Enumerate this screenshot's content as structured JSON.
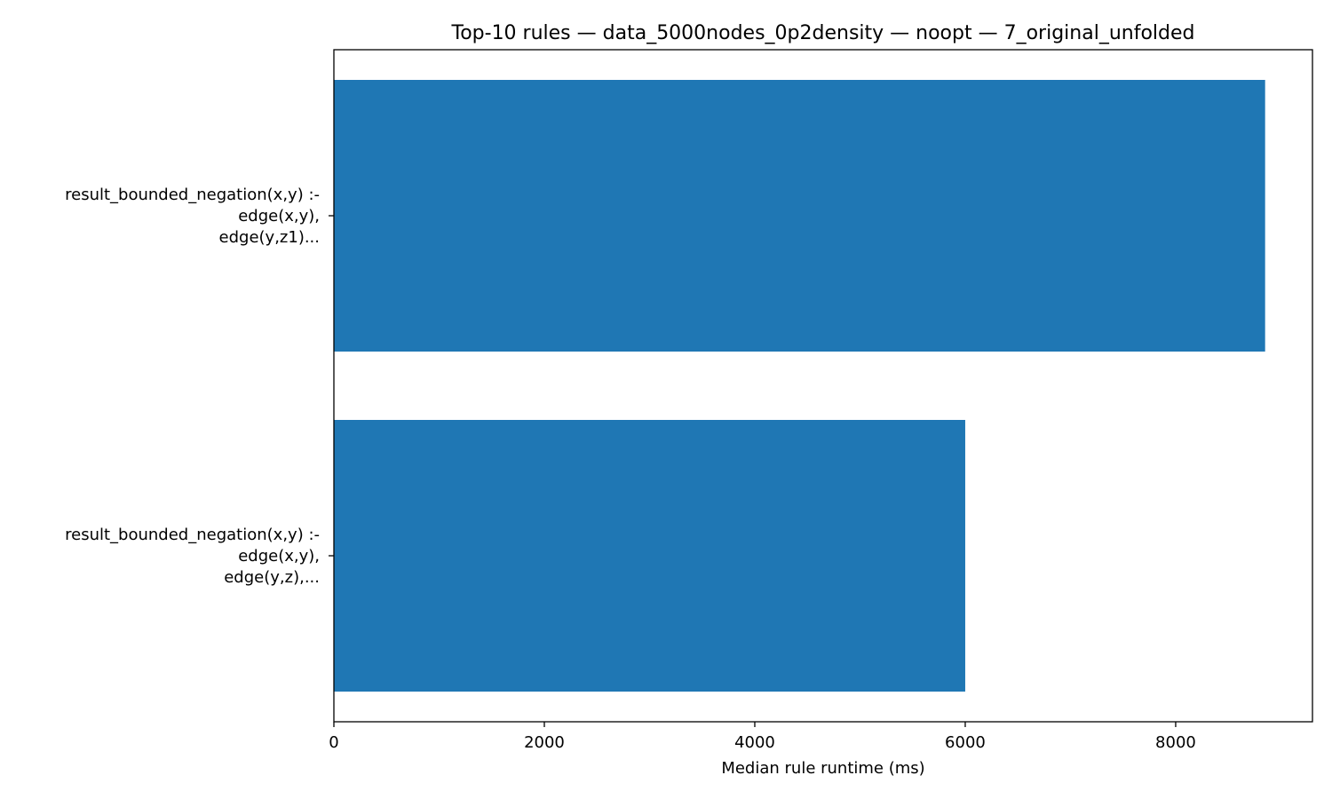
{
  "chart_data": {
    "type": "bar",
    "orientation": "horizontal",
    "title": "Top-10 rules — data_5000nodes_0p2density — noopt — 7_original_unfolded",
    "xlabel": "Median rule runtime (ms)",
    "ylabel": "",
    "xlim": [
      0,
      9300
    ],
    "xticks": [
      0,
      2000,
      4000,
      6000,
      8000
    ],
    "xtick_labels": [
      "0",
      "2000",
      "4000",
      "6000",
      "8000"
    ],
    "categories": [
      [
        "result_bounded_negation(x,y) :-",
        "edge(x,y),",
        "edge(y,z1)..."
      ],
      [
        "result_bounded_negation(x,y) :-",
        "edge(x,y),",
        "edge(y,z),..."
      ]
    ],
    "values": [
      8850,
      6000
    ],
    "bar_color": "#1f77b4",
    "grid": false,
    "legend": "none"
  }
}
